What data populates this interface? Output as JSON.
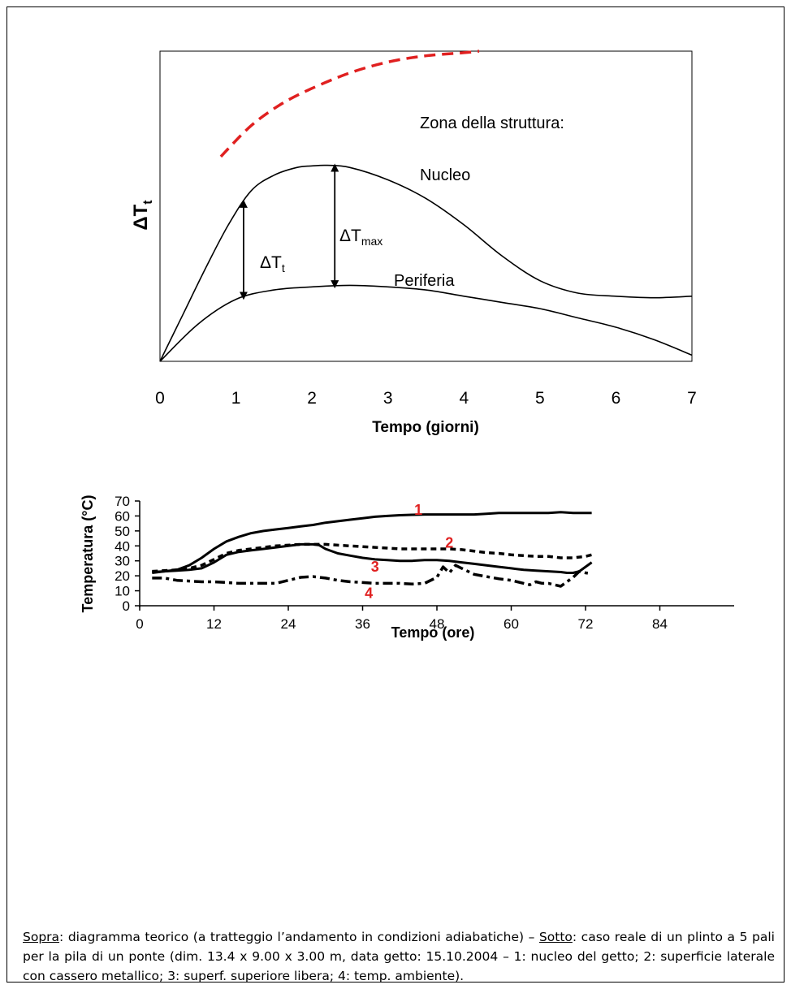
{
  "chart_data": [
    {
      "type": "line",
      "title": "",
      "xlabel": "Tempo (giorni)",
      "ylabel": "ΔT",
      "ylabel_sub": "t",
      "xlim": [
        0,
        7
      ],
      "xticks": [
        "0",
        "1",
        "2",
        "3",
        "4",
        "5",
        "6",
        "7"
      ],
      "ylim": [
        0,
        1
      ],
      "grid": false,
      "series": [
        {
          "name": "",
          "style": "dashed",
          "color": "#e02020",
          "x": [
            0.8,
            1.2,
            1.6,
            2.0,
            2.5,
            3.0,
            3.5,
            4.0,
            4.2
          ],
          "y": [
            0.66,
            0.76,
            0.83,
            0.88,
            0.93,
            0.965,
            0.985,
            0.995,
            1.0
          ]
        },
        {
          "name": "Nucleo",
          "style": "solid",
          "color": "#000000",
          "x": [
            0,
            0.3,
            0.6,
            0.9,
            1.2,
            1.5,
            1.8,
            2.0,
            2.2,
            2.5,
            3.0,
            3.5,
            4.0,
            4.5,
            5.0,
            5.5,
            6.0,
            6.5,
            7.0
          ],
          "y": [
            0,
            0.15,
            0.3,
            0.44,
            0.55,
            0.6,
            0.625,
            0.63,
            0.632,
            0.625,
            0.585,
            0.525,
            0.44,
            0.34,
            0.26,
            0.22,
            0.21,
            0.205,
            0.21
          ]
        },
        {
          "name": "Periferia",
          "style": "solid",
          "color": "#000000",
          "x": [
            0,
            0.5,
            1.0,
            1.5,
            2.0,
            2.5,
            3.0,
            3.5,
            4.0,
            4.5,
            5.0,
            5.5,
            6.0,
            6.5,
            7.0
          ],
          "y": [
            0,
            0.12,
            0.2,
            0.23,
            0.24,
            0.245,
            0.24,
            0.23,
            0.21,
            0.19,
            0.17,
            0.14,
            0.11,
            0.07,
            0.02
          ]
        }
      ],
      "annotations": [
        {
          "text": "Zona della struttura:"
        },
        {
          "text": "Nucleo"
        },
        {
          "text": "Periferia"
        },
        {
          "text": "ΔT",
          "sub": "t",
          "at_x": 1.1
        },
        {
          "text": "ΔT",
          "sub": "max",
          "at_x": 2.3
        }
      ]
    },
    {
      "type": "line",
      "title": "",
      "xlabel": "Tempo (ore)",
      "ylabel": "Temperatura (°C)",
      "xlim": [
        0,
        96
      ],
      "xticks": [
        "0",
        "12",
        "24",
        "36",
        "48",
        "60",
        "72",
        "84"
      ],
      "ylim": [
        0,
        70
      ],
      "yticks": [
        "0",
        "10",
        "20",
        "30",
        "40",
        "50",
        "60",
        "70"
      ],
      "grid": false,
      "series": [
        {
          "name": "1",
          "style": "solid",
          "x": [
            2,
            4,
            6,
            8,
            10,
            12,
            14,
            16,
            18,
            20,
            22,
            24,
            26,
            28,
            30,
            32,
            34,
            36,
            38,
            40,
            42,
            44,
            46,
            48,
            50,
            52,
            54,
            56,
            58,
            60,
            62,
            64,
            66,
            68,
            70,
            72,
            73
          ],
          "y": [
            22,
            23,
            24,
            27,
            32,
            38,
            43,
            46,
            48.5,
            50,
            51,
            52,
            53,
            54,
            55.5,
            56.5,
            57.5,
            58.5,
            59.5,
            60,
            60.5,
            60.8,
            61,
            61,
            61,
            61,
            61,
            61.5,
            62,
            62,
            62,
            62,
            62,
            62.5,
            62,
            62,
            62
          ]
        },
        {
          "name": "2",
          "style": "dashed",
          "x": [
            2,
            4,
            6,
            8,
            10,
            12,
            14,
            16,
            18,
            20,
            22,
            24,
            26,
            28,
            30,
            32,
            34,
            36,
            38,
            40,
            42,
            44,
            46,
            48,
            50,
            52,
            54,
            56,
            58,
            60,
            62,
            64,
            66,
            68,
            70,
            72,
            73
          ],
          "y": [
            23,
            23.5,
            24,
            25,
            27,
            31,
            35,
            37,
            38,
            39,
            40,
            40.5,
            41,
            41,
            41,
            40.5,
            40,
            39.5,
            39,
            38.5,
            38,
            38,
            38,
            38,
            38,
            37.5,
            36.5,
            35.5,
            35,
            34,
            33.5,
            33,
            33,
            32,
            32,
            33,
            34
          ]
        },
        {
          "name": "3",
          "style": "solid",
          "x": [
            2,
            4,
            6,
            8,
            10,
            12,
            14,
            16,
            18,
            20,
            22,
            24,
            26,
            28,
            29,
            30,
            32,
            34,
            36,
            38,
            40,
            42,
            44,
            46,
            48,
            50,
            52,
            54,
            56,
            58,
            60,
            62,
            64,
            66,
            68,
            69,
            70,
            71,
            72,
            73
          ],
          "y": [
            22.5,
            23,
            23.5,
            24,
            25,
            29,
            34,
            36,
            37,
            38,
            39,
            40,
            41,
            41,
            40.5,
            38,
            35,
            33.5,
            32,
            31,
            30.5,
            30,
            30,
            30.5,
            30.5,
            30,
            29,
            28,
            27,
            26,
            25,
            24,
            23.5,
            23,
            22.5,
            22,
            22,
            23,
            26,
            29
          ]
        },
        {
          "name": "4",
          "style": "dash-dot",
          "x": [
            2,
            4,
            6,
            8,
            10,
            12,
            14,
            16,
            18,
            20,
            22,
            24,
            26,
            28,
            30,
            32,
            34,
            36,
            38,
            40,
            42,
            44,
            46,
            48,
            49,
            50,
            51,
            52,
            53,
            54,
            56,
            58,
            60,
            62,
            63,
            64,
            65,
            66,
            67,
            68,
            69,
            70,
            71,
            72,
            73
          ],
          "y": [
            18.5,
            18.5,
            17,
            16.5,
            16,
            16,
            15.5,
            15,
            15,
            15,
            15,
            17,
            19,
            19.5,
            18.5,
            17,
            16,
            15.5,
            15,
            15,
            15,
            14.5,
            15,
            19,
            26,
            22,
            27,
            25,
            23,
            21,
            19.5,
            18,
            17,
            15,
            14,
            16,
            15,
            15,
            14,
            13,
            16,
            19,
            23,
            22,
            21.5
          ]
        }
      ],
      "series_labels": [
        "1",
        "2",
        "3",
        "4"
      ]
    }
  ],
  "caption": {
    "sopra_label": "Sopra",
    "sopra_text": ": diagramma teorico (a tratteggio l’andamento in condizioni adiabatiche) – ",
    "sotto_label": "Sotto",
    "sotto_text": ": caso reale di un plinto a 5 pali per la pila di un ponte (dim. 13.4 x 9.00 x 3.00 m, data getto: 15.10.2004 – 1: nucleo del getto; 2:  superficie laterale con cassero metallico; 3: superf. superiore libera; 4: temp. ambiente)."
  }
}
